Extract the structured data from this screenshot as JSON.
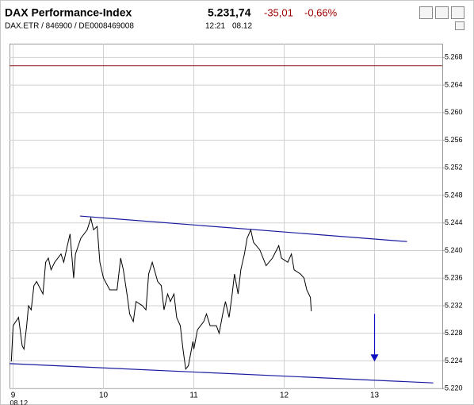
{
  "header": {
    "title": "DAX Performance-Index",
    "last": "5.231,74",
    "change": "-35,01",
    "change_pct": "-0,66%",
    "subtitle": "DAX.ETR / 846900 / DE0008469008",
    "time": "12:21",
    "date": "08.12"
  },
  "chart_data": {
    "type": "line",
    "x": [
      8.98,
      9.0,
      9.06,
      9.1,
      9.12,
      9.15,
      9.17,
      9.2,
      9.23,
      9.26,
      9.33,
      9.36,
      9.39,
      9.42,
      9.46,
      9.53,
      9.56,
      9.6,
      9.63,
      9.67,
      9.69,
      9.75,
      9.82,
      9.86,
      9.89,
      9.93,
      9.96,
      10.0,
      10.07,
      10.15,
      10.19,
      10.22,
      10.26,
      10.29,
      10.33,
      10.36,
      10.43,
      10.47,
      10.5,
      10.54,
      10.6,
      10.64,
      10.67,
      10.71,
      10.74,
      10.78,
      10.81,
      10.85,
      10.88,
      10.91,
      10.94,
      10.99,
      11.0,
      11.04,
      11.11,
      11.14,
      11.18,
      11.25,
      11.28,
      11.32,
      11.35,
      11.39,
      11.42,
      11.45,
      11.49,
      11.52,
      11.56,
      11.59,
      11.63,
      11.66,
      11.73,
      11.8,
      11.87,
      11.94,
      11.97,
      12.04,
      12.08,
      12.11,
      12.18,
      12.22,
      12.25,
      12.29,
      12.3
    ],
    "series": [
      {
        "color": "#000000",
        "values": [
          5223.9,
          5229.1,
          5230.3,
          5226.2,
          5225.7,
          5229.1,
          5232.0,
          5231.4,
          5234.9,
          5235.5,
          5233.7,
          5238.3,
          5238.9,
          5237.2,
          5238.3,
          5239.5,
          5238.3,
          5240.7,
          5242.4,
          5236.0,
          5239.5,
          5241.8,
          5243.0,
          5244.7,
          5243.0,
          5243.5,
          5238.3,
          5236.0,
          5234.3,
          5234.3,
          5238.9,
          5237.2,
          5233.7,
          5230.8,
          5229.7,
          5232.6,
          5232.0,
          5231.4,
          5236.6,
          5238.3,
          5235.5,
          5234.9,
          5231.4,
          5233.7,
          5232.6,
          5233.7,
          5230.3,
          5229.1,
          5225.7,
          5222.8,
          5223.3,
          5226.8,
          5225.7,
          5228.5,
          5229.7,
          5230.8,
          5229.1,
          5229.1,
          5228.0,
          5230.8,
          5232.6,
          5230.3,
          5233.2,
          5236.6,
          5233.7,
          5237.2,
          5239.5,
          5241.8,
          5243.0,
          5241.2,
          5240.1,
          5237.8,
          5238.9,
          5240.7,
          5238.9,
          5238.3,
          5239.5,
          5237.2,
          5236.6,
          5236.0,
          5234.3,
          5233.2,
          5231.2
        ]
      }
    ],
    "xlim": [
      8.96,
      13.75
    ],
    "xticks": [
      9,
      10,
      11,
      12,
      13
    ],
    "x_date_label": "08.12",
    "ylim": [
      5219.9,
      5270
    ],
    "yticks": [
      {
        "value": 5220,
        "label": "5.220"
      },
      {
        "value": 5224,
        "label": "5.224"
      },
      {
        "value": 5228,
        "label": "5.228"
      },
      {
        "value": 5232,
        "label": "5.232"
      },
      {
        "value": 5236,
        "label": "5.236"
      },
      {
        "value": 5240,
        "label": "5.240"
      },
      {
        "value": 5244,
        "label": "5.244"
      },
      {
        "value": 5248,
        "label": "5.248"
      },
      {
        "value": 5252,
        "label": "5.252"
      },
      {
        "value": 5256,
        "label": "5.256"
      },
      {
        "value": 5260,
        "label": "5.260"
      },
      {
        "value": 5264,
        "label": "5.264"
      },
      {
        "value": 5268,
        "label": "5.268"
      }
    ],
    "grid": true,
    "hlines": [
      {
        "value": 5266.8,
        "color": "#8b1a1a"
      }
    ],
    "lines": [
      {
        "x": [
          9.74,
          13.36
        ],
        "y": [
          5245.0,
          5241.3
        ],
        "color": "#1a1aa0"
      },
      {
        "x": [
          8.96,
          13.65
        ],
        "y": [
          5223.6,
          5220.8
        ],
        "color": "#1a1aa0"
      }
    ],
    "arrow": {
      "x": 13.0,
      "y": [
        5230.8,
        5223.9
      ],
      "color": "#1010c0"
    }
  }
}
